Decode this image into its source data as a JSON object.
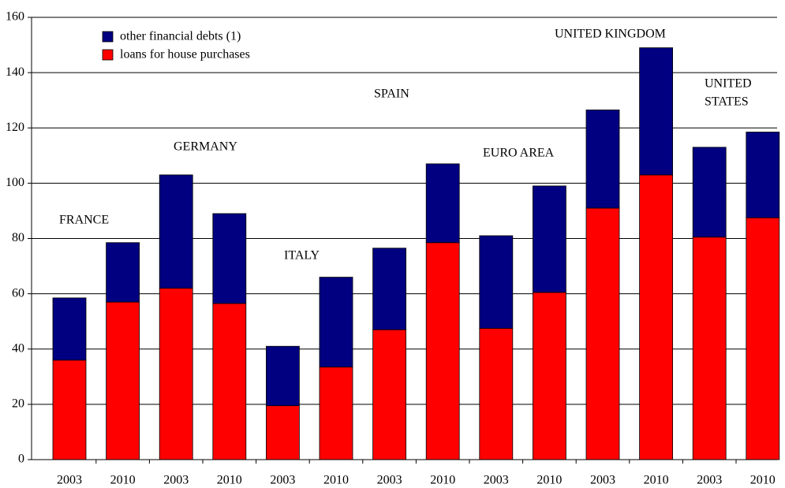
{
  "chart_data": {
    "type": "stacked_bar",
    "categories": [
      "2003",
      "2010",
      "2003",
      "2010",
      "2003",
      "2010",
      "2003",
      "2010",
      "2003",
      "2010",
      "2003",
      "2010",
      "2003",
      "2010"
    ],
    "series": [
      {
        "name": "loans for house purchases",
        "color": "#ff0000",
        "values": [
          36,
          57,
          62,
          56.5,
          19.5,
          33.5,
          47,
          78.5,
          47.5,
          60.5,
          91,
          103,
          80.5,
          87.5
        ]
      },
      {
        "name": "other financial debts (1)",
        "color": "#000080",
        "values": [
          22.5,
          21.5,
          41,
          32.5,
          21.5,
          32.5,
          29.5,
          28.5,
          33.5,
          38.5,
          35.5,
          46,
          32.5,
          31
        ]
      }
    ],
    "annotations": [
      [
        "FRANCE"
      ],
      [
        "GERMANY"
      ],
      [
        "ITALY"
      ],
      [
        "SPAIN"
      ],
      [
        "EURO AREA"
      ],
      [
        "UNITED KINGDOM"
      ],
      [
        "UNITED",
        "STATES"
      ]
    ],
    "ylim": [
      0,
      160
    ],
    "yticks": [
      0,
      20,
      40,
      60,
      80,
      100,
      120,
      140,
      160
    ],
    "grid": true,
    "legend": "upper left"
  }
}
